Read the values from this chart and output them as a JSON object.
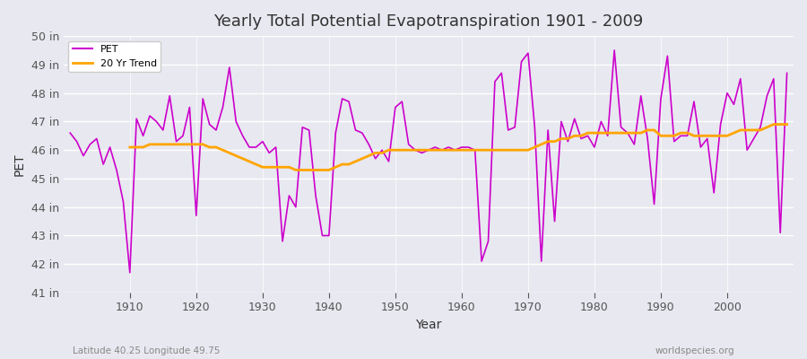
{
  "title": "Yearly Total Potential Evapotranspiration 1901 - 2009",
  "xlabel": "Year",
  "ylabel": "PET",
  "subtitle_left": "Latitude 40.25 Longitude 49.75",
  "subtitle_right": "worldspecies.org",
  "pet_color": "#CC00CC",
  "trend_color": "#FFA500",
  "bg_color": "#E8E8F0",
  "grid_color": "#FFFFFF",
  "ylim": [
    41,
    50
  ],
  "yticks": [
    41,
    42,
    43,
    44,
    45,
    46,
    47,
    48,
    49,
    50
  ],
  "ytick_labels": [
    "41 in",
    "42 in",
    "43 in",
    "44 in",
    "45 in",
    "46 in",
    "47 in",
    "48 in",
    "49 in",
    "50 in"
  ],
  "xlim": [
    1900,
    2010
  ],
  "years": [
    1901,
    1902,
    1903,
    1904,
    1905,
    1906,
    1907,
    1908,
    1909,
    1910,
    1911,
    1912,
    1913,
    1914,
    1915,
    1916,
    1917,
    1918,
    1919,
    1920,
    1921,
    1922,
    1923,
    1924,
    1925,
    1926,
    1927,
    1928,
    1929,
    1930,
    1931,
    1932,
    1933,
    1934,
    1935,
    1936,
    1937,
    1938,
    1939,
    1940,
    1941,
    1942,
    1943,
    1944,
    1945,
    1946,
    1947,
    1948,
    1949,
    1950,
    1951,
    1952,
    1953,
    1954,
    1955,
    1956,
    1957,
    1958,
    1959,
    1960,
    1961,
    1962,
    1963,
    1964,
    1965,
    1966,
    1967,
    1968,
    1969,
    1970,
    1971,
    1972,
    1973,
    1974,
    1975,
    1976,
    1977,
    1978,
    1979,
    1980,
    1981,
    1982,
    1983,
    1984,
    1985,
    1986,
    1987,
    1988,
    1989,
    1990,
    1991,
    1992,
    1993,
    1994,
    1995,
    1996,
    1997,
    1998,
    1999,
    2000,
    2001,
    2002,
    2003,
    2004,
    2005,
    2006,
    2007,
    2008,
    2009
  ],
  "pet_values": [
    46.6,
    46.3,
    45.8,
    46.2,
    46.4,
    45.5,
    46.1,
    45.3,
    44.2,
    41.7,
    47.1,
    46.5,
    47.2,
    47.0,
    46.7,
    47.9,
    46.3,
    46.5,
    47.5,
    43.7,
    47.8,
    46.9,
    46.7,
    47.5,
    48.9,
    47.0,
    46.5,
    46.1,
    46.1,
    46.3,
    45.9,
    46.1,
    42.8,
    44.4,
    44.0,
    46.8,
    46.7,
    44.4,
    43.0,
    43.0,
    46.6,
    47.8,
    47.7,
    46.7,
    46.6,
    46.2,
    45.7,
    46.0,
    45.6,
    47.5,
    47.7,
    46.2,
    46.0,
    45.9,
    46.0,
    46.1,
    46.0,
    46.1,
    46.0,
    46.1,
    46.1,
    46.0,
    42.1,
    42.8,
    48.4,
    48.7,
    46.7,
    46.8,
    49.1,
    49.4,
    46.8,
    42.1,
    46.7,
    43.5,
    47.0,
    46.3,
    47.1,
    46.4,
    46.5,
    46.1,
    47.0,
    46.5,
    49.5,
    46.8,
    46.6,
    46.2,
    47.9,
    46.4,
    44.1,
    47.8,
    49.3,
    46.3,
    46.5,
    46.5,
    47.7,
    46.1,
    46.4,
    44.5,
    46.9,
    48.0,
    47.6,
    48.5,
    46.0,
    46.4,
    46.8,
    47.9,
    48.5,
    43.1,
    48.7
  ],
  "trend_years": [
    1910,
    1911,
    1912,
    1913,
    1914,
    1915,
    1916,
    1917,
    1918,
    1919,
    1920,
    1921,
    1922,
    1923,
    1924,
    1925,
    1926,
    1927,
    1928,
    1929,
    1930,
    1931,
    1932,
    1933,
    1934,
    1935,
    1936,
    1937,
    1938,
    1939,
    1940,
    1941,
    1942,
    1943,
    1944,
    1945,
    1946,
    1947,
    1948,
    1949,
    1950,
    1951,
    1952,
    1953,
    1954,
    1955,
    1956,
    1957,
    1958,
    1959,
    1960,
    1961,
    1962,
    1963,
    1964,
    1965,
    1966,
    1967,
    1968,
    1969,
    1970,
    1971,
    1972,
    1973,
    1974,
    1975,
    1976,
    1977,
    1978,
    1979,
    1980,
    1981,
    1982,
    1983,
    1984,
    1985,
    1986,
    1987,
    1988,
    1989,
    1990,
    1991,
    1992,
    1993,
    1994,
    1995,
    1996,
    1997,
    1998,
    1999,
    2000,
    2001,
    2002,
    2003,
    2004,
    2005,
    2006,
    2007,
    2008,
    2009
  ],
  "trend_values": [
    46.1,
    46.1,
    46.1,
    46.2,
    46.2,
    46.2,
    46.2,
    46.2,
    46.2,
    46.2,
    46.2,
    46.2,
    46.1,
    46.1,
    46.0,
    45.9,
    45.8,
    45.7,
    45.6,
    45.5,
    45.4,
    45.4,
    45.4,
    45.4,
    45.4,
    45.3,
    45.3,
    45.3,
    45.3,
    45.3,
    45.3,
    45.4,
    45.5,
    45.5,
    45.6,
    45.7,
    45.8,
    45.9,
    45.9,
    46.0,
    46.0,
    46.0,
    46.0,
    46.0,
    46.0,
    46.0,
    46.0,
    46.0,
    46.0,
    46.0,
    46.0,
    46.0,
    46.0,
    46.0,
    46.0,
    46.0,
    46.0,
    46.0,
    46.0,
    46.0,
    46.0,
    46.1,
    46.2,
    46.3,
    46.3,
    46.4,
    46.4,
    46.5,
    46.5,
    46.6,
    46.6,
    46.6,
    46.6,
    46.6,
    46.6,
    46.6,
    46.6,
    46.6,
    46.7,
    46.7,
    46.5,
    46.5,
    46.5,
    46.6,
    46.6,
    46.5,
    46.5,
    46.5,
    46.5,
    46.5,
    46.5,
    46.6,
    46.7,
    46.7,
    46.7,
    46.7,
    46.8,
    46.9,
    46.9,
    46.9
  ]
}
